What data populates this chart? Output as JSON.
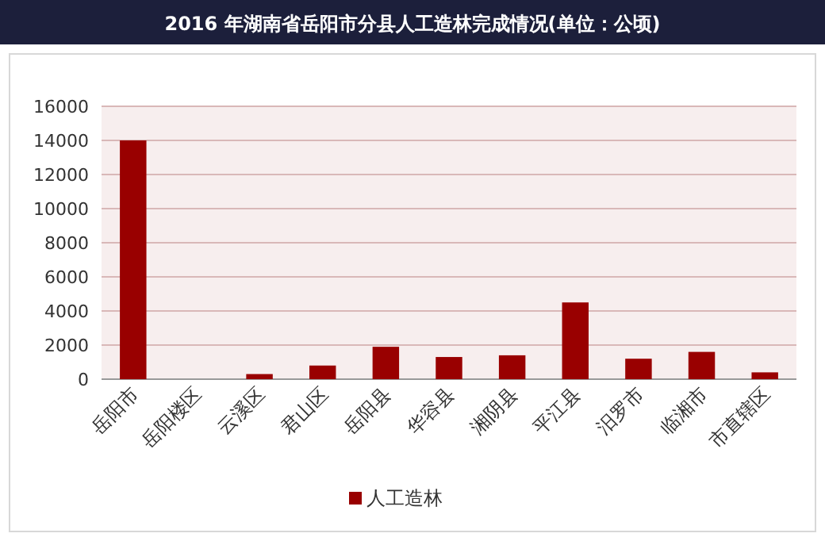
{
  "chart_data": {
    "type": "bar",
    "title": "2016 年湖南省岳阳市分县人工造林完成情况(单位：公顷)",
    "categories": [
      "岳阳市",
      "岳阳楼区",
      "云溪区",
      "君山区",
      "岳阳县",
      "华容县",
      "湘阴县",
      "平江县",
      "汨罗市",
      "临湘市",
      "市直辖区"
    ],
    "series": [
      {
        "name": "人工造林",
        "color": "#990000",
        "values": [
          14000,
          0,
          300,
          800,
          1900,
          1300,
          1400,
          4500,
          1200,
          1600,
          400
        ]
      }
    ],
    "ylim": [
      0,
      16000
    ],
    "yticks": [
      0,
      2000,
      4000,
      6000,
      8000,
      10000,
      12000,
      14000,
      16000
    ],
    "grid": "y",
    "legend": "bottom"
  }
}
